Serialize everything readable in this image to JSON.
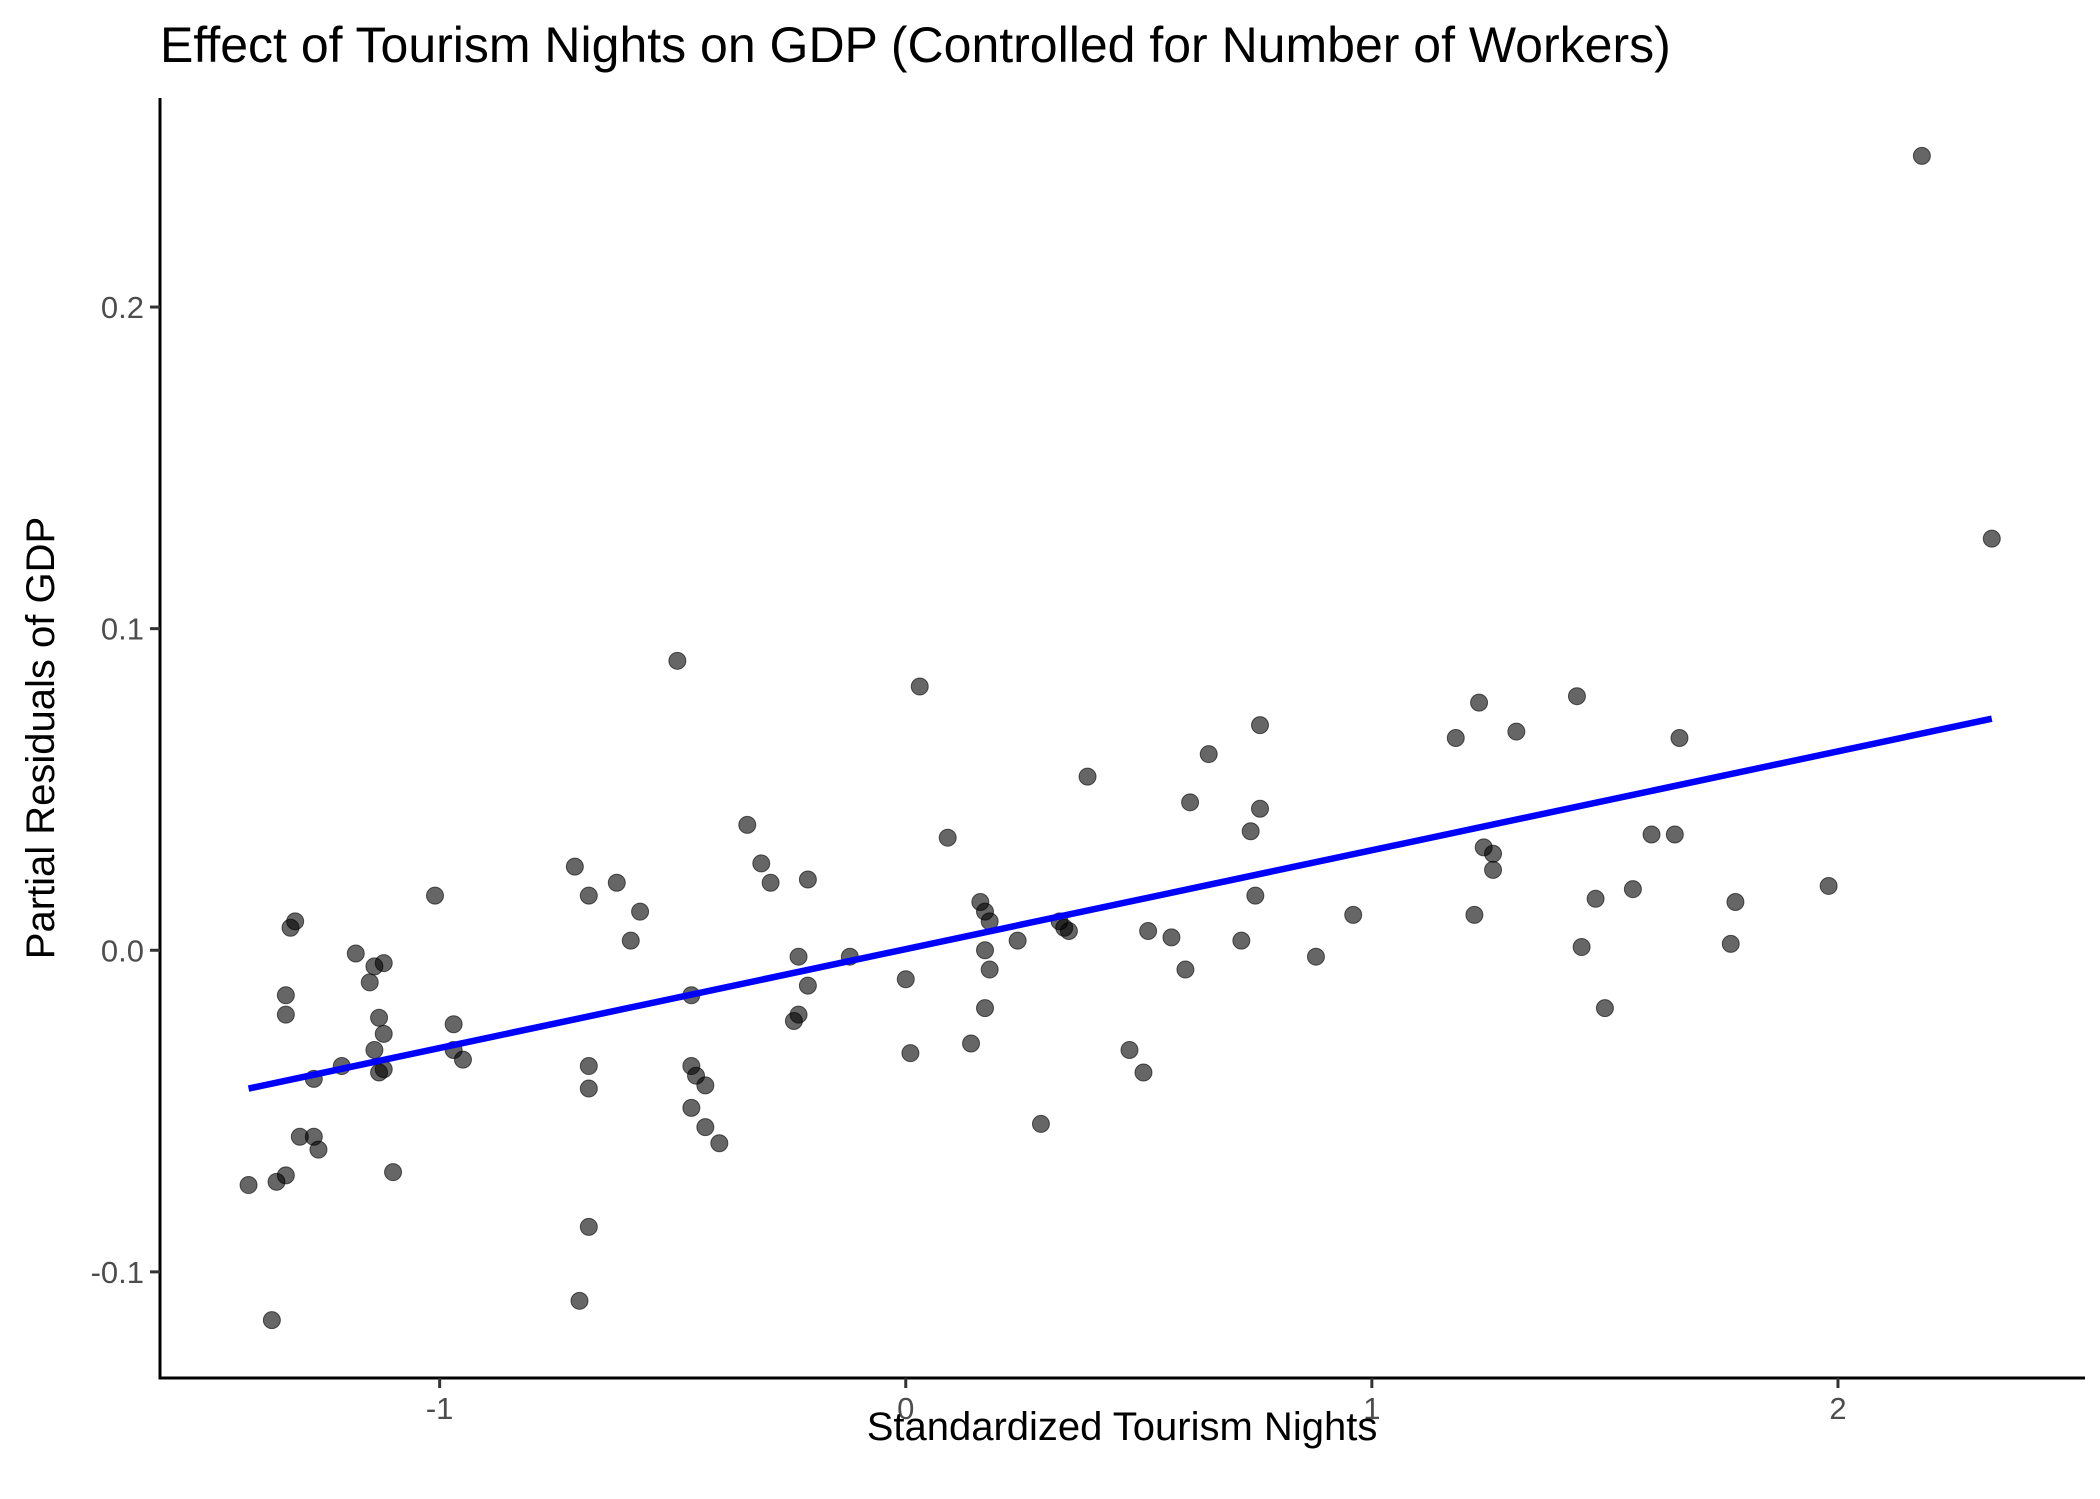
{
  "chart_data": {
    "type": "scatter",
    "title": "Effect of Tourism Nights on GDP (Controlled for Number of Workers)",
    "xlabel": "Standardized Tourism Nights",
    "ylabel": "Partial Residuals of GDP",
    "xlim": [
      -1.6,
      2.53
    ],
    "ylim": [
      -0.133,
      0.265
    ],
    "x_ticks": [
      -1,
      0,
      1,
      2
    ],
    "x_tick_labels": [
      "-1",
      "0",
      "1",
      "2"
    ],
    "y_ticks": [
      -0.1,
      0.0,
      0.1,
      0.2
    ],
    "y_tick_labels": [
      "-0.1",
      "0.0",
      "0.1",
      "0.2"
    ],
    "grid": false,
    "point_color": "#000000",
    "point_opacity": 0.6,
    "fit_line": {
      "color": "#0000ff",
      "x": [
        -1.41,
        2.33
      ],
      "y": [
        -0.043,
        0.072
      ]
    },
    "points": [
      {
        "x": -1.41,
        "y": -0.073
      },
      {
        "x": -1.36,
        "y": -0.115
      },
      {
        "x": -1.35,
        "y": -0.072
      },
      {
        "x": -1.33,
        "y": -0.07
      },
      {
        "x": -1.33,
        "y": -0.014
      },
      {
        "x": -1.33,
        "y": -0.02
      },
      {
        "x": -1.32,
        "y": 0.007
      },
      {
        "x": -1.31,
        "y": 0.009
      },
      {
        "x": -1.3,
        "y": -0.058
      },
      {
        "x": -1.27,
        "y": -0.058
      },
      {
        "x": -1.27,
        "y": -0.04
      },
      {
        "x": -1.26,
        "y": -0.062
      },
      {
        "x": -1.21,
        "y": -0.036
      },
      {
        "x": -1.18,
        "y": -0.001
      },
      {
        "x": -1.15,
        "y": -0.01
      },
      {
        "x": -1.14,
        "y": -0.005
      },
      {
        "x": -1.14,
        "y": -0.031
      },
      {
        "x": -1.13,
        "y": -0.021
      },
      {
        "x": -1.13,
        "y": -0.038
      },
      {
        "x": -1.12,
        "y": -0.004
      },
      {
        "x": -1.12,
        "y": -0.026
      },
      {
        "x": -1.12,
        "y": -0.037
      },
      {
        "x": -1.1,
        "y": -0.069
      },
      {
        "x": -1.01,
        "y": 0.017
      },
      {
        "x": -0.97,
        "y": -0.023
      },
      {
        "x": -0.97,
        "y": -0.031
      },
      {
        "x": -0.95,
        "y": -0.034
      },
      {
        "x": -0.71,
        "y": 0.026
      },
      {
        "x": -0.7,
        "y": -0.109
      },
      {
        "x": -0.68,
        "y": -0.086
      },
      {
        "x": -0.68,
        "y": 0.017
      },
      {
        "x": -0.68,
        "y": -0.036
      },
      {
        "x": -0.68,
        "y": -0.043
      },
      {
        "x": -0.62,
        "y": 0.021
      },
      {
        "x": -0.59,
        "y": 0.003
      },
      {
        "x": -0.57,
        "y": 0.012
      },
      {
        "x": -0.49,
        "y": 0.09
      },
      {
        "x": -0.46,
        "y": -0.049
      },
      {
        "x": -0.46,
        "y": -0.014
      },
      {
        "x": -0.46,
        "y": -0.036
      },
      {
        "x": -0.45,
        "y": -0.039
      },
      {
        "x": -0.43,
        "y": -0.055
      },
      {
        "x": -0.43,
        "y": -0.042
      },
      {
        "x": -0.4,
        "y": -0.06
      },
      {
        "x": -0.34,
        "y": 0.039
      },
      {
        "x": -0.31,
        "y": 0.027
      },
      {
        "x": -0.29,
        "y": 0.021
      },
      {
        "x": -0.24,
        "y": -0.022
      },
      {
        "x": -0.23,
        "y": -0.02
      },
      {
        "x": -0.23,
        "y": -0.002
      },
      {
        "x": -0.21,
        "y": -0.011
      },
      {
        "x": -0.21,
        "y": 0.022
      },
      {
        "x": -0.12,
        "y": -0.002
      },
      {
        "x": 0.0,
        "y": -0.009
      },
      {
        "x": 0.01,
        "y": -0.032
      },
      {
        "x": 0.03,
        "y": 0.082
      },
      {
        "x": 0.09,
        "y": 0.035
      },
      {
        "x": 0.14,
        "y": -0.029
      },
      {
        "x": 0.16,
        "y": 0.015
      },
      {
        "x": 0.17,
        "y": -0.018
      },
      {
        "x": 0.17,
        "y": 0.0
      },
      {
        "x": 0.17,
        "y": 0.012
      },
      {
        "x": 0.18,
        "y": 0.009
      },
      {
        "x": 0.18,
        "y": -0.006
      },
      {
        "x": 0.24,
        "y": 0.003
      },
      {
        "x": 0.29,
        "y": -0.054
      },
      {
        "x": 0.33,
        "y": 0.009
      },
      {
        "x": 0.34,
        "y": 0.007
      },
      {
        "x": 0.35,
        "y": 0.006
      },
      {
        "x": 0.39,
        "y": 0.054
      },
      {
        "x": 0.48,
        "y": -0.031
      },
      {
        "x": 0.51,
        "y": -0.038
      },
      {
        "x": 0.52,
        "y": 0.006
      },
      {
        "x": 0.57,
        "y": 0.004
      },
      {
        "x": 0.6,
        "y": -0.006
      },
      {
        "x": 0.61,
        "y": 0.046
      },
      {
        "x": 0.65,
        "y": 0.061
      },
      {
        "x": 0.72,
        "y": 0.003
      },
      {
        "x": 0.74,
        "y": 0.037
      },
      {
        "x": 0.75,
        "y": 0.017
      },
      {
        "x": 0.76,
        "y": 0.044
      },
      {
        "x": 0.76,
        "y": 0.07
      },
      {
        "x": 0.88,
        "y": -0.002
      },
      {
        "x": 0.96,
        "y": 0.011
      },
      {
        "x": 1.18,
        "y": 0.066
      },
      {
        "x": 1.22,
        "y": 0.011
      },
      {
        "x": 1.23,
        "y": 0.077
      },
      {
        "x": 1.24,
        "y": 0.032
      },
      {
        "x": 1.26,
        "y": 0.03
      },
      {
        "x": 1.26,
        "y": 0.025
      },
      {
        "x": 1.31,
        "y": 0.068
      },
      {
        "x": 1.44,
        "y": 0.079
      },
      {
        "x": 1.45,
        "y": 0.001
      },
      {
        "x": 1.48,
        "y": 0.016
      },
      {
        "x": 1.5,
        "y": -0.018
      },
      {
        "x": 1.56,
        "y": 0.019
      },
      {
        "x": 1.6,
        "y": 0.036
      },
      {
        "x": 1.65,
        "y": 0.036
      },
      {
        "x": 1.66,
        "y": 0.066
      },
      {
        "x": 1.77,
        "y": 0.002
      },
      {
        "x": 1.78,
        "y": 0.015
      },
      {
        "x": 1.98,
        "y": 0.02
      },
      {
        "x": 2.18,
        "y": 0.247
      },
      {
        "x": 2.33,
        "y": 0.128
      }
    ]
  }
}
